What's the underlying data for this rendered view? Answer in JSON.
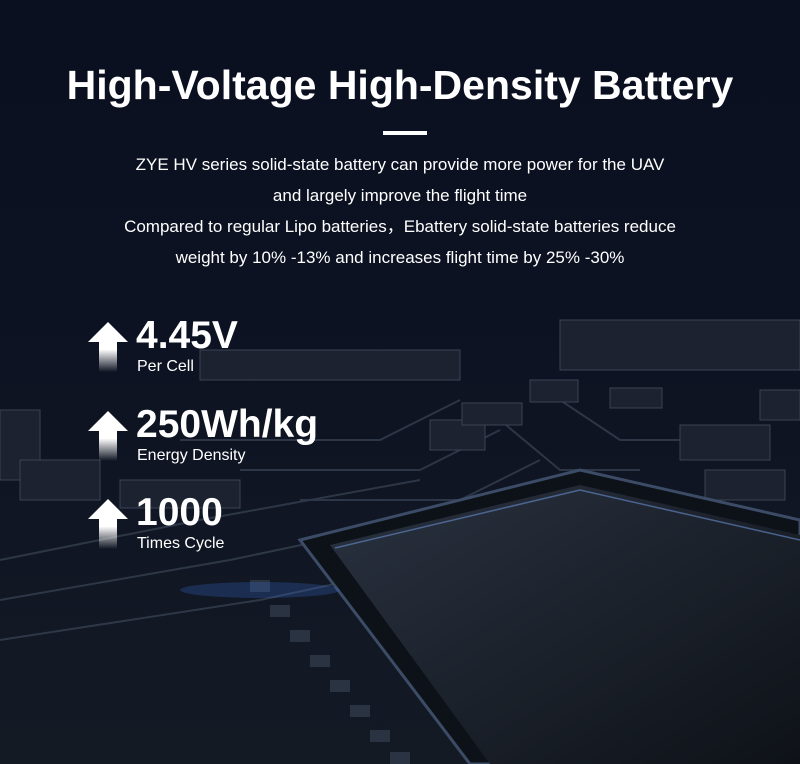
{
  "header": {
    "title": "High-Voltage High-Density Battery",
    "description_lines": [
      "ZYE HV series solid-state battery can provide more power for the UAV",
      "and largely improve the flight time",
      "Compared to regular Lipo batteries，Ebattery solid-state batteries reduce",
      "weight by 10% -13% and increases flight time by 25% -30%"
    ]
  },
  "stats": [
    {
      "icon": "arrow-up-icon",
      "value": "4.45V",
      "label": "Per Cell"
    },
    {
      "icon": "arrow-up-icon",
      "value": "250Wh/kg",
      "label": "Energy Density"
    },
    {
      "icon": "arrow-up-icon",
      "value": "1000",
      "label": "Times Cycle"
    }
  ],
  "colors": {
    "background": "#0a0e16",
    "accent_glow": "#3a6fd8",
    "text": "#ffffff"
  }
}
